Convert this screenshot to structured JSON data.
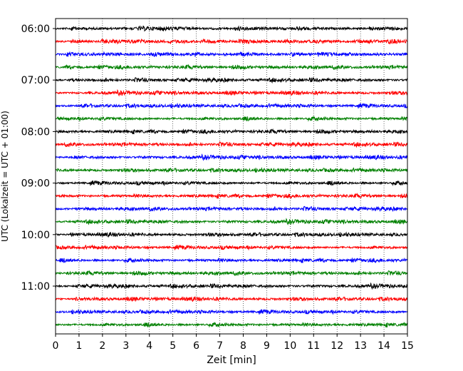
{
  "chart_data": {
    "type": "line",
    "title": "",
    "xlabel": "Zeit  [min]",
    "ylabel": "UTC (Lokalzeit = UTC + 01:00)",
    "xlim": [
      0,
      15
    ],
    "x_ticks": [
      0,
      1,
      2,
      3,
      4,
      5,
      6,
      7,
      8,
      9,
      10,
      11,
      12,
      13,
      14,
      15
    ],
    "x_tick_labels": [
      "0",
      "1",
      "2",
      "3",
      "4",
      "5",
      "6",
      "7",
      "8",
      "9",
      "10",
      "11",
      "12",
      "13",
      "14",
      "15"
    ],
    "y_ticks": [
      {
        "time": "06:00",
        "label": "06:00"
      },
      {
        "time": "07:00",
        "label": "07:00"
      },
      {
        "time": "08:00",
        "label": "08:00"
      },
      {
        "time": "09:00",
        "label": "09:00"
      },
      {
        "time": "10:00",
        "label": "10:00"
      },
      {
        "time": "11:00",
        "label": "11:00"
      }
    ],
    "grid": {
      "x": true,
      "y": false,
      "style": "dotted"
    },
    "trace_interval_minutes": 15,
    "trace_colors": [
      "#000000",
      "#ff0000",
      "#0000ff",
      "#008000"
    ],
    "traces": [
      {
        "start": "06:00"
      },
      {
        "start": "06:15"
      },
      {
        "start": "06:30"
      },
      {
        "start": "06:45"
      },
      {
        "start": "07:00"
      },
      {
        "start": "07:15"
      },
      {
        "start": "07:30"
      },
      {
        "start": "07:45"
      },
      {
        "start": "08:00"
      },
      {
        "start": "08:15"
      },
      {
        "start": "08:30"
      },
      {
        "start": "08:45"
      },
      {
        "start": "09:00"
      },
      {
        "start": "09:15"
      },
      {
        "start": "09:30"
      },
      {
        "start": "09:45"
      },
      {
        "start": "10:00"
      },
      {
        "start": "10:15"
      },
      {
        "start": "10:30"
      },
      {
        "start": "10:45"
      },
      {
        "start": "11:00"
      },
      {
        "start": "11:15"
      },
      {
        "start": "11:30"
      },
      {
        "start": "11:45"
      }
    ]
  }
}
